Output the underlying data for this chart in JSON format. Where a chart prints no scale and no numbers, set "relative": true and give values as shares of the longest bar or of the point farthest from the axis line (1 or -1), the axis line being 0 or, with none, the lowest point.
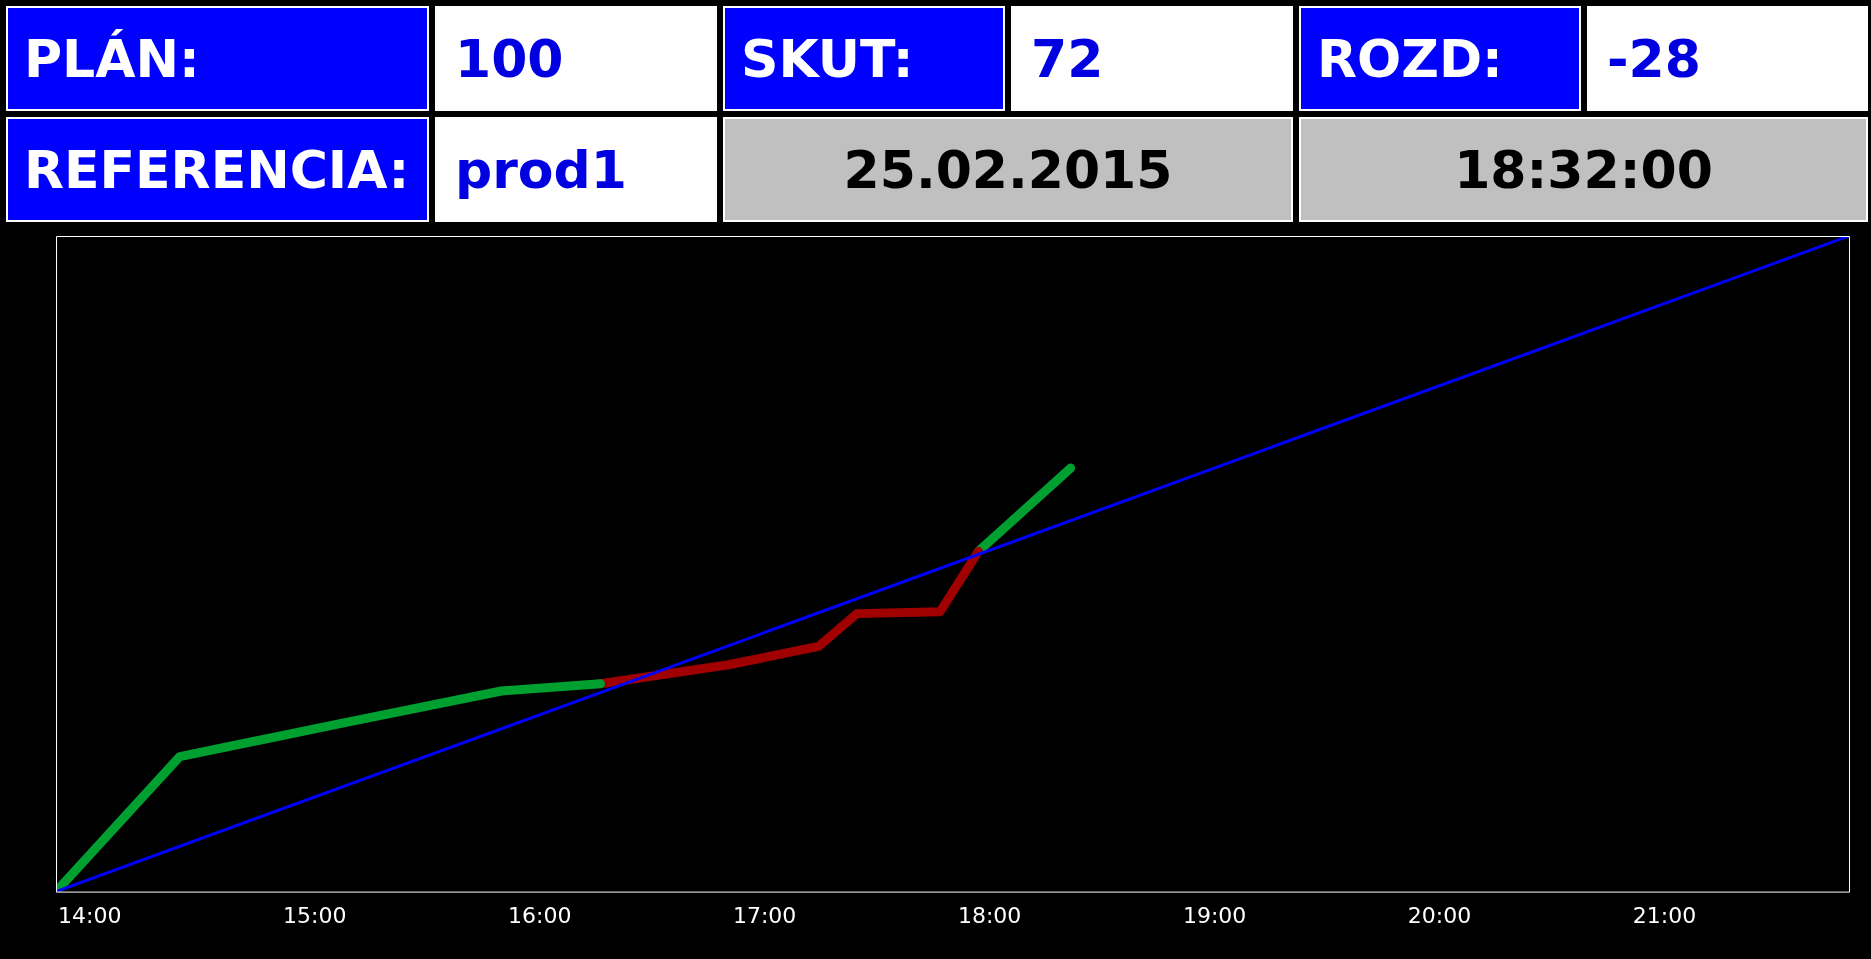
{
  "chart_data": [
    {
      "type": "other",
      "annotations": [
        "PLÁN:",
        "100",
        "SKUT:",
        "72",
        "ROZD:",
        "-28",
        "REFERENCIA:",
        "prod1",
        "25.02.2015",
        "18:32:00"
      ]
    },
    {
      "type": "line",
      "relative": true,
      "grid": false,
      "legend": false,
      "marker": "none",
      "xlim": [
        13.85,
        21.82
      ],
      "xticks": [
        {
          "value": 14,
          "label": "14:00"
        },
        {
          "value": 15,
          "label": "15:00"
        },
        {
          "value": 16,
          "label": "16:00"
        },
        {
          "value": 17,
          "label": "17:00"
        },
        {
          "value": 18,
          "label": "18:00"
        },
        {
          "value": 19,
          "label": "19:00"
        },
        {
          "value": 20,
          "label": "20:00"
        },
        {
          "value": 21,
          "label": "21:00"
        }
      ],
      "series": [
        {
          "color": "#0000ff",
          "x": [
            13.85,
            21.82
          ],
          "values": [
            0,
            1
          ]
        },
        {
          "color": "#00a030",
          "x": [
            13.85,
            14.4,
            15.14,
            15.83,
            16.27
          ],
          "values": [
            0,
            0.206,
            0.258,
            0.306,
            0.317
          ]
        },
        {
          "color": "#a00000",
          "x": [
            16.27,
            16.84,
            17.24,
            17.41,
            17.78,
            17.95
          ],
          "values": [
            0.317,
            0.346,
            0.374,
            0.424,
            0.427,
            0.519
          ]
        },
        {
          "color": "#00a030",
          "x": [
            17.95,
            18.36
          ],
          "values": [
            0.519,
            0.646
          ]
        }
      ]
    }
  ]
}
